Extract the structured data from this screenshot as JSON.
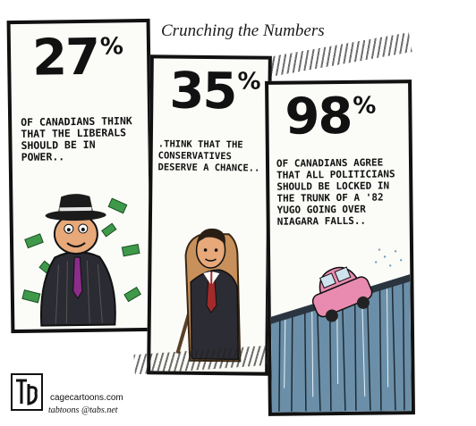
{
  "caption": "Crunching the Numbers",
  "panels": [
    {
      "percent": "27",
      "sign": "%",
      "lines": [
        "OF CANADIANS THINK",
        "THAT THE LIBERALS",
        "SHOULD BE IN",
        "POWER.."
      ]
    },
    {
      "percent": "35",
      "sign": "%",
      "lines": [
        ".THINK THAT THE",
        "CONSERVATIVES",
        "DESERVE A CHANCE.."
      ]
    },
    {
      "percent": "98",
      "sign": "%",
      "lines": [
        "OF CANADIANS AGREE",
        "THAT ALL POLITICIANS",
        "SHOULD BE LOCKED IN",
        "THE TRUNK OF A '82",
        "YUGO GOING OVER",
        "NIAGARA FALLS.."
      ]
    }
  ],
  "signature": {
    "site": "cagecartoons.com",
    "contact": "tabtoons @tabs.net"
  },
  "colors": {
    "money": "#3e9a4a",
    "car": "#e98bb0",
    "water": "#6b8fa8",
    "skin": "#e7a87a"
  }
}
